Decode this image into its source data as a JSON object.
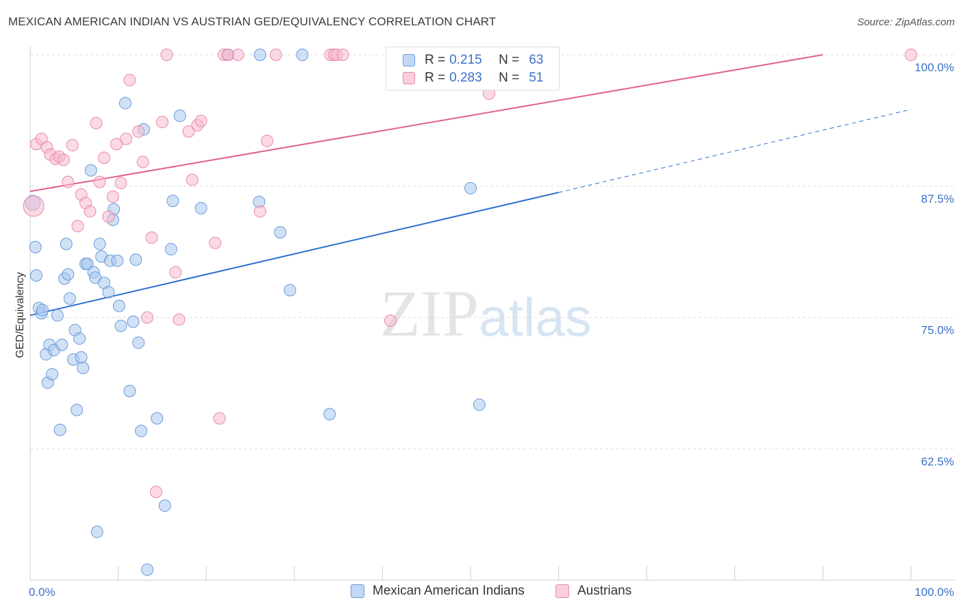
{
  "header": {
    "title": "MEXICAN AMERICAN INDIAN VS AUSTRIAN GED/EQUIVALENCY CORRELATION CHART",
    "source": "Source: ZipAtlas.com"
  },
  "watermark": {
    "zip": "ZIP",
    "atlas": "atlas"
  },
  "legend": {
    "rows": [
      {
        "r_label": "R =",
        "r_value": "0.215",
        "n_label": "N =",
        "n_value": "63"
      },
      {
        "r_label": "R =",
        "r_value": "0.283",
        "n_label": "N =",
        "n_value": "51"
      }
    ]
  },
  "bottom_legend": {
    "series1": "Mexican American Indians",
    "series2": "Austrians"
  },
  "colors": {
    "blue_fill": "#a9c8ef",
    "blue_stroke": "#6a9ad8",
    "blue_line": "#2a6fd0",
    "pink_fill": "#f7bcd0",
    "pink_stroke": "#e88aa8",
    "pink_line": "#e0608a",
    "tick_label": "#3a70c8",
    "grid": "#dddddd"
  },
  "chart_data": {
    "type": "scatter",
    "title": "MEXICAN AMERICAN INDIAN VS AUSTRIAN GED/EQUIVALENCY CORRELATION CHART",
    "xlabel": "",
    "ylabel": "GED/Equivalency",
    "xlim": [
      0,
      100
    ],
    "ylim": [
      50,
      100
    ],
    "x_tick_labels": [
      "0.0%",
      "100.0%"
    ],
    "y_ticks": [
      62.5,
      75.0,
      87.5,
      100.0
    ],
    "y_tick_labels": [
      "62.5%",
      "75.0%",
      "87.5%",
      "100.0%"
    ],
    "series": [
      {
        "name": "Mexican American Indians",
        "r": 0.215,
        "n": 63,
        "trend": {
          "x0": 0,
          "y0": 75.2,
          "x1": 60,
          "y1": 86.9,
          "dash_x1": 100,
          "dash_y1": 94.8
        },
        "points": [
          [
            0.3,
            85.9
          ],
          [
            0.6,
            81.7
          ],
          [
            0.7,
            79.0
          ],
          [
            1.0,
            75.9
          ],
          [
            1.3,
            75.4
          ],
          [
            1.4,
            75.7
          ],
          [
            1.8,
            71.5
          ],
          [
            2.0,
            68.8
          ],
          [
            2.2,
            72.4
          ],
          [
            2.5,
            69.6
          ],
          [
            2.7,
            71.9
          ],
          [
            3.1,
            75.2
          ],
          [
            3.4,
            64.3
          ],
          [
            3.6,
            72.4
          ],
          [
            3.9,
            78.7
          ],
          [
            4.1,
            82.0
          ],
          [
            4.3,
            79.1
          ],
          [
            4.5,
            76.8
          ],
          [
            4.9,
            71.0
          ],
          [
            5.1,
            73.8
          ],
          [
            5.3,
            66.2
          ],
          [
            5.6,
            73.0
          ],
          [
            5.8,
            71.2
          ],
          [
            6.0,
            70.2
          ],
          [
            6.3,
            80.1
          ],
          [
            6.5,
            80.1
          ],
          [
            6.9,
            89.0
          ],
          [
            7.2,
            79.3
          ],
          [
            7.4,
            78.8
          ],
          [
            7.6,
            54.6
          ],
          [
            7.9,
            82.0
          ],
          [
            8.1,
            80.8
          ],
          [
            8.4,
            78.3
          ],
          [
            8.9,
            77.4
          ],
          [
            9.1,
            80.4
          ],
          [
            9.4,
            84.3
          ],
          [
            9.5,
            85.3
          ],
          [
            9.9,
            80.4
          ],
          [
            10.1,
            76.1
          ],
          [
            10.3,
            74.2
          ],
          [
            10.8,
            95.4
          ],
          [
            11.3,
            68.0
          ],
          [
            11.7,
            74.6
          ],
          [
            12.0,
            80.5
          ],
          [
            12.3,
            72.6
          ],
          [
            12.6,
            64.2
          ],
          [
            12.9,
            92.9
          ],
          [
            13.3,
            51.0
          ],
          [
            14.4,
            65.4
          ],
          [
            15.3,
            57.1
          ],
          [
            16.0,
            81.5
          ],
          [
            16.2,
            86.1
          ],
          [
            17.0,
            94.2
          ],
          [
            19.4,
            85.4
          ],
          [
            22.4,
            100.0
          ],
          [
            26.1,
            100.0
          ],
          [
            26.0,
            86.0
          ],
          [
            28.4,
            83.1
          ],
          [
            29.5,
            77.6
          ],
          [
            30.9,
            100.0
          ],
          [
            34.0,
            65.8
          ],
          [
            50.0,
            87.3
          ],
          [
            51.0,
            66.7
          ]
        ]
      },
      {
        "name": "Austrians",
        "r": 0.283,
        "n": 51,
        "trend": {
          "x0": 0,
          "y0": 87.0,
          "x1": 90,
          "y1": 100.0
        },
        "points": [
          [
            0.4,
            85.6
          ],
          [
            0.7,
            91.5
          ],
          [
            1.3,
            92.0
          ],
          [
            1.9,
            91.2
          ],
          [
            2.3,
            90.5
          ],
          [
            2.9,
            90.1
          ],
          [
            3.3,
            90.3
          ],
          [
            3.8,
            90.0
          ],
          [
            4.3,
            87.9
          ],
          [
            4.8,
            91.4
          ],
          [
            5.4,
            83.7
          ],
          [
            5.8,
            86.7
          ],
          [
            6.3,
            85.9
          ],
          [
            6.8,
            85.1
          ],
          [
            7.5,
            93.5
          ],
          [
            7.9,
            87.9
          ],
          [
            8.4,
            90.2
          ],
          [
            8.9,
            84.6
          ],
          [
            9.4,
            86.5
          ],
          [
            9.8,
            91.5
          ],
          [
            10.3,
            87.8
          ],
          [
            10.9,
            92.0
          ],
          [
            11.3,
            97.6
          ],
          [
            12.3,
            92.7
          ],
          [
            12.8,
            89.8
          ],
          [
            13.3,
            75.0
          ],
          [
            13.8,
            82.6
          ],
          [
            14.3,
            58.4
          ],
          [
            15.0,
            93.6
          ],
          [
            15.5,
            100.0
          ],
          [
            16.5,
            79.3
          ],
          [
            16.9,
            74.8
          ],
          [
            18.0,
            92.7
          ],
          [
            18.4,
            88.1
          ],
          [
            19.0,
            93.3
          ],
          [
            19.4,
            93.7
          ],
          [
            21.0,
            82.1
          ],
          [
            21.5,
            65.4
          ],
          [
            22.0,
            100.0
          ],
          [
            22.5,
            100.0
          ],
          [
            23.6,
            100.0
          ],
          [
            26.1,
            85.1
          ],
          [
            26.9,
            91.8
          ],
          [
            27.9,
            100.0
          ],
          [
            34.1,
            100.0
          ],
          [
            34.5,
            100.0
          ],
          [
            34.8,
            100.0
          ],
          [
            35.5,
            100.0
          ],
          [
            40.9,
            74.7
          ],
          [
            52.1,
            96.3
          ],
          [
            100.0,
            100.0
          ]
        ]
      }
    ]
  }
}
